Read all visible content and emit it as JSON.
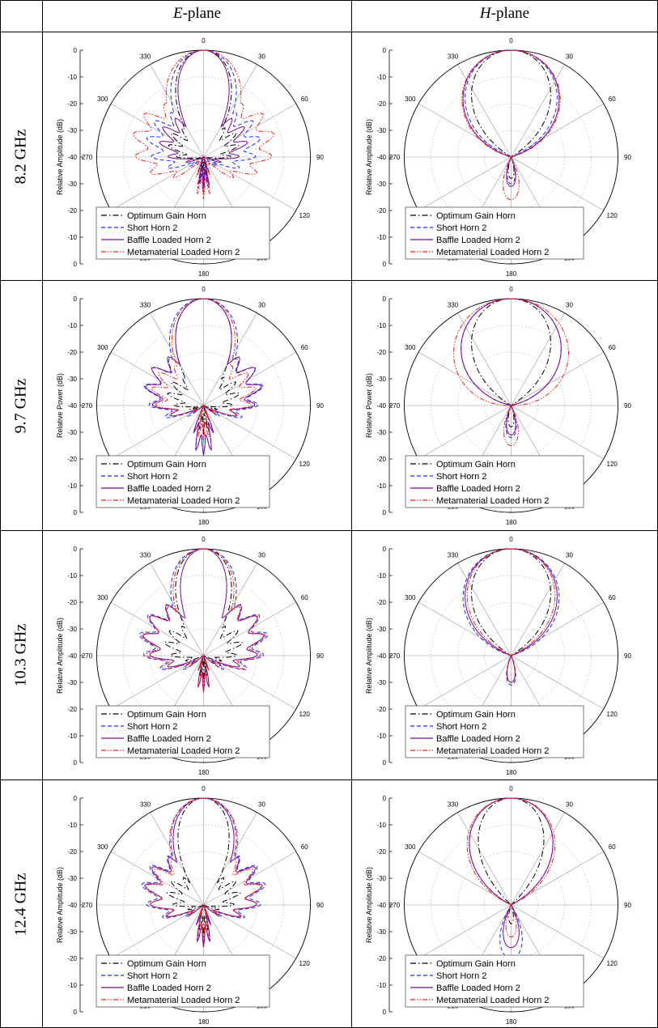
{
  "table": {
    "column_headers": [
      {
        "italic": "E",
        "rest": "-plane"
      },
      {
        "italic": "H",
        "rest": "-plane"
      }
    ],
    "row_labels": [
      "8.2 GHz",
      "9.7 GHz",
      "10.3 GHz",
      "12.4 GHz"
    ]
  },
  "legend_items": [
    {
      "name": "Optimum Gain Horn",
      "color": "#000000",
      "dash": "dashdot"
    },
    {
      "name": "Short Horn 2",
      "color": "#1f2bff",
      "dash": "dash"
    },
    {
      "name": "Baffle Loaded Horn 2",
      "color": "#7a0a8c",
      "dash": "solid"
    },
    {
      "name": "Metamaterial Loaded Horn 2",
      "color": "#e8231c",
      "dash": "dashdotdot"
    }
  ],
  "chart_data": [
    {
      "type": "polar",
      "panel": "8.2 GHz E-plane",
      "ylabel": "Relative Amplitude (dB)",
      "r_ticks": [
        "0",
        "-10",
        "-20",
        "-30",
        "-40"
      ],
      "angle_ticks": [
        "0",
        "30",
        "60",
        "90",
        "120",
        "150",
        "180",
        "210",
        "240",
        "270",
        "300",
        "330"
      ],
      "rlim": [
        -40,
        0
      ],
      "grid": true,
      "legend_position": "bottom-left",
      "series": [
        {
          "name": "Optimum Gain Horn",
          "mainlobe_halfwidth_deg": 22,
          "sidelobe_peak_deg": 55,
          "sidelobe_db": -28,
          "backlobe_db": -34
        },
        {
          "name": "Short Horn 2",
          "mainlobe_halfwidth_deg": 26,
          "sidelobe_peak_deg": 60,
          "sidelobe_db": -20,
          "backlobe_db": -30
        },
        {
          "name": "Baffle Loaded Horn 2",
          "mainlobe_halfwidth_deg": 20,
          "sidelobe_peak_deg": 52,
          "sidelobe_db": -24,
          "backlobe_db": -32
        },
        {
          "name": "Metamaterial Loaded Horn 2",
          "mainlobe_halfwidth_deg": 30,
          "sidelobe_peak_deg": 65,
          "sidelobe_db": -15,
          "backlobe_db": -28
        }
      ]
    },
    {
      "type": "polar",
      "panel": "8.2 GHz H-plane",
      "ylabel": "Relative Amplitude (dB)",
      "r_ticks": [
        "0",
        "-10",
        "-20",
        "-30",
        "-40"
      ],
      "angle_ticks": [
        "0",
        "30",
        "60",
        "90",
        "120",
        "150",
        "180",
        "210",
        "240",
        "270",
        "300",
        "330"
      ],
      "rlim": [
        -40,
        0
      ],
      "grid": true,
      "legend_position": "bottom-left",
      "series": [
        {
          "name": "Optimum Gain Horn",
          "mainlobe_halfwidth_deg": 32,
          "sidelobe_peak_deg": 0,
          "sidelobe_db": -60,
          "backlobe_db": -32
        },
        {
          "name": "Short Horn 2",
          "mainlobe_halfwidth_deg": 38,
          "sidelobe_peak_deg": 0,
          "sidelobe_db": -60,
          "backlobe_db": -30
        },
        {
          "name": "Baffle Loaded Horn 2",
          "mainlobe_halfwidth_deg": 40,
          "sidelobe_peak_deg": 0,
          "sidelobe_db": -60,
          "backlobe_db": -29
        },
        {
          "name": "Metamaterial Loaded Horn 2",
          "mainlobe_halfwidth_deg": 41,
          "sidelobe_peak_deg": 0,
          "sidelobe_db": -60,
          "backlobe_db": -24
        }
      ]
    },
    {
      "type": "polar",
      "panel": "9.7 GHz E-plane",
      "ylabel": "Relative Power (dB)",
      "r_ticks": [
        "0",
        "-10",
        "-20",
        "-30",
        "-40"
      ],
      "angle_ticks": [
        "0",
        "30",
        "60",
        "90",
        "120",
        "150",
        "180",
        "210",
        "240",
        "270",
        "300",
        "330"
      ],
      "rlim": [
        -40,
        0
      ],
      "grid": true,
      "legend_position": "bottom-left",
      "series": [
        {
          "name": "Optimum Gain Horn",
          "mainlobe_halfwidth_deg": 22,
          "sidelobe_peak_deg": 58,
          "sidelobe_db": -28,
          "backlobe_db": -33
        },
        {
          "name": "Short Horn 2",
          "mainlobe_halfwidth_deg": 27,
          "sidelobe_peak_deg": 60,
          "sidelobe_db": -19,
          "backlobe_db": -25
        },
        {
          "name": "Baffle Loaded Horn 2",
          "mainlobe_halfwidth_deg": 22,
          "sidelobe_peak_deg": 55,
          "sidelobe_db": -19,
          "backlobe_db": -25
        },
        {
          "name": "Metamaterial Loaded Horn 2",
          "mainlobe_halfwidth_deg": 25,
          "sidelobe_peak_deg": 62,
          "sidelobe_db": -22,
          "backlobe_db": -30
        }
      ]
    },
    {
      "type": "polar",
      "panel": "9.7 GHz H-plane",
      "ylabel": "Relative Power (dB)",
      "r_ticks": [
        "0",
        "-10",
        "-20",
        "-30",
        "-40"
      ],
      "angle_ticks": [
        "0",
        "30",
        "60",
        "90",
        "120",
        "150",
        "180",
        "210",
        "240",
        "270",
        "300",
        "330"
      ],
      "rlim": [
        -40,
        0
      ],
      "grid": true,
      "legend_position": "bottom-left",
      "series": [
        {
          "name": "Optimum Gain Horn",
          "mainlobe_halfwidth_deg": 32,
          "sidelobe_peak_deg": 0,
          "sidelobe_db": -60,
          "backlobe_db": -32
        },
        {
          "name": "Short Horn 2",
          "mainlobe_halfwidth_deg": 42,
          "sidelobe_peak_deg": 0,
          "sidelobe_db": -60,
          "backlobe_db": -28
        },
        {
          "name": "Baffle Loaded Horn 2",
          "mainlobe_halfwidth_deg": 42,
          "sidelobe_peak_deg": 0,
          "sidelobe_db": -60,
          "backlobe_db": -29
        },
        {
          "name": "Metamaterial Loaded Horn 2",
          "mainlobe_halfwidth_deg": 50,
          "sidelobe_peak_deg": 0,
          "sidelobe_db": -60,
          "backlobe_db": -25
        }
      ]
    },
    {
      "type": "polar",
      "panel": "10.3 GHz E-plane",
      "ylabel": "Relative Amplitude (dB)",
      "r_ticks": [
        "0",
        "-10",
        "-20",
        "-30",
        "-40"
      ],
      "angle_ticks": [
        "0",
        "30",
        "60",
        "90",
        "120",
        "150",
        "180",
        "210",
        "240",
        "270",
        "300",
        "330"
      ],
      "rlim": [
        -40,
        0
      ],
      "grid": true,
      "legend_position": "bottom-left",
      "series": [
        {
          "name": "Optimum Gain Horn",
          "mainlobe_halfwidth_deg": 22,
          "sidelobe_peak_deg": 60,
          "sidelobe_db": -27,
          "backlobe_db": -34
        },
        {
          "name": "Short Horn 2",
          "mainlobe_halfwidth_deg": 26,
          "sidelobe_peak_deg": 60,
          "sidelobe_db": -17,
          "backlobe_db": -30
        },
        {
          "name": "Baffle Loaded Horn 2",
          "mainlobe_halfwidth_deg": 18,
          "sidelobe_peak_deg": 55,
          "sidelobe_db": -18,
          "backlobe_db": -30
        },
        {
          "name": "Metamaterial Loaded Horn 2",
          "mainlobe_halfwidth_deg": 24,
          "sidelobe_peak_deg": 60,
          "sidelobe_db": -18,
          "backlobe_db": -30
        }
      ]
    },
    {
      "type": "polar",
      "panel": "10.3 GHz H-plane",
      "ylabel": "Relative Amplitude (dB)",
      "r_ticks": [
        "0",
        "-10",
        "-20",
        "-30",
        "-40"
      ],
      "angle_ticks": [
        "0",
        "30",
        "60",
        "90",
        "120",
        "150",
        "180",
        "210",
        "240",
        "270",
        "300",
        "330"
      ],
      "rlim": [
        -40,
        0
      ],
      "grid": true,
      "legend_position": "bottom-left",
      "series": [
        {
          "name": "Optimum Gain Horn",
          "mainlobe_halfwidth_deg": 32,
          "sidelobe_peak_deg": 0,
          "sidelobe_db": -60,
          "backlobe_db": -30
        },
        {
          "name": "Short Horn 2",
          "mainlobe_halfwidth_deg": 40,
          "sidelobe_peak_deg": 0,
          "sidelobe_db": -60,
          "backlobe_db": -29
        },
        {
          "name": "Baffle Loaded Horn 2",
          "mainlobe_halfwidth_deg": 38,
          "sidelobe_peak_deg": 0,
          "sidelobe_db": -60,
          "backlobe_db": -30
        },
        {
          "name": "Metamaterial Loaded Horn 2",
          "mainlobe_halfwidth_deg": 36,
          "sidelobe_peak_deg": 0,
          "sidelobe_db": -60,
          "backlobe_db": -30
        }
      ]
    },
    {
      "type": "polar",
      "panel": "12.4 GHz E-plane",
      "ylabel": "Relative Amplitude (dB)",
      "r_ticks": [
        "0",
        "-10",
        "-20",
        "-30",
        "-40"
      ],
      "angle_ticks": [
        "0",
        "30",
        "60",
        "90",
        "120",
        "150",
        "180",
        "210",
        "240",
        "270",
        "300",
        "330"
      ],
      "rlim": [
        -40,
        0
      ],
      "grid": true,
      "legend_position": "bottom-left",
      "series": [
        {
          "name": "Optimum Gain Horn",
          "mainlobe_halfwidth_deg": 20,
          "sidelobe_peak_deg": 60,
          "sidelobe_db": -28,
          "backlobe_db": -32
        },
        {
          "name": "Short Horn 2",
          "mainlobe_halfwidth_deg": 26,
          "sidelobe_peak_deg": 60,
          "sidelobe_db": -18,
          "backlobe_db": -28
        },
        {
          "name": "Baffle Loaded Horn 2",
          "mainlobe_halfwidth_deg": 24,
          "sidelobe_peak_deg": 58,
          "sidelobe_db": -19,
          "backlobe_db": -28
        },
        {
          "name": "Metamaterial Loaded Horn 2",
          "mainlobe_halfwidth_deg": 27,
          "sidelobe_peak_deg": 62,
          "sidelobe_db": -20,
          "backlobe_db": -30
        }
      ]
    },
    {
      "type": "polar",
      "panel": "12.4 GHz H-plane",
      "ylabel": "Relative Amplitude (dB)",
      "r_ticks": [
        "0",
        "-10",
        "-20",
        "-30",
        "-40"
      ],
      "angle_ticks": [
        "0",
        "30",
        "60",
        "90",
        "120",
        "150",
        "180",
        "210",
        "240",
        "270",
        "300",
        "330"
      ],
      "rlim": [
        -40,
        0
      ],
      "grid": true,
      "legend_position": "bottom-left",
      "series": [
        {
          "name": "Optimum Gain Horn",
          "mainlobe_halfwidth_deg": 26,
          "sidelobe_peak_deg": 0,
          "sidelobe_db": -60,
          "backlobe_db": -33
        },
        {
          "name": "Short Horn 2",
          "mainlobe_halfwidth_deg": 34,
          "sidelobe_peak_deg": 0,
          "sidelobe_db": -60,
          "backlobe_db": -20
        },
        {
          "name": "Baffle Loaded Horn 2",
          "mainlobe_halfwidth_deg": 34,
          "sidelobe_peak_deg": 0,
          "sidelobe_db": -60,
          "backlobe_db": -24
        },
        {
          "name": "Metamaterial Loaded Horn 2",
          "mainlobe_halfwidth_deg": 36,
          "sidelobe_peak_deg": 0,
          "sidelobe_db": -60,
          "backlobe_db": -28
        }
      ]
    }
  ]
}
